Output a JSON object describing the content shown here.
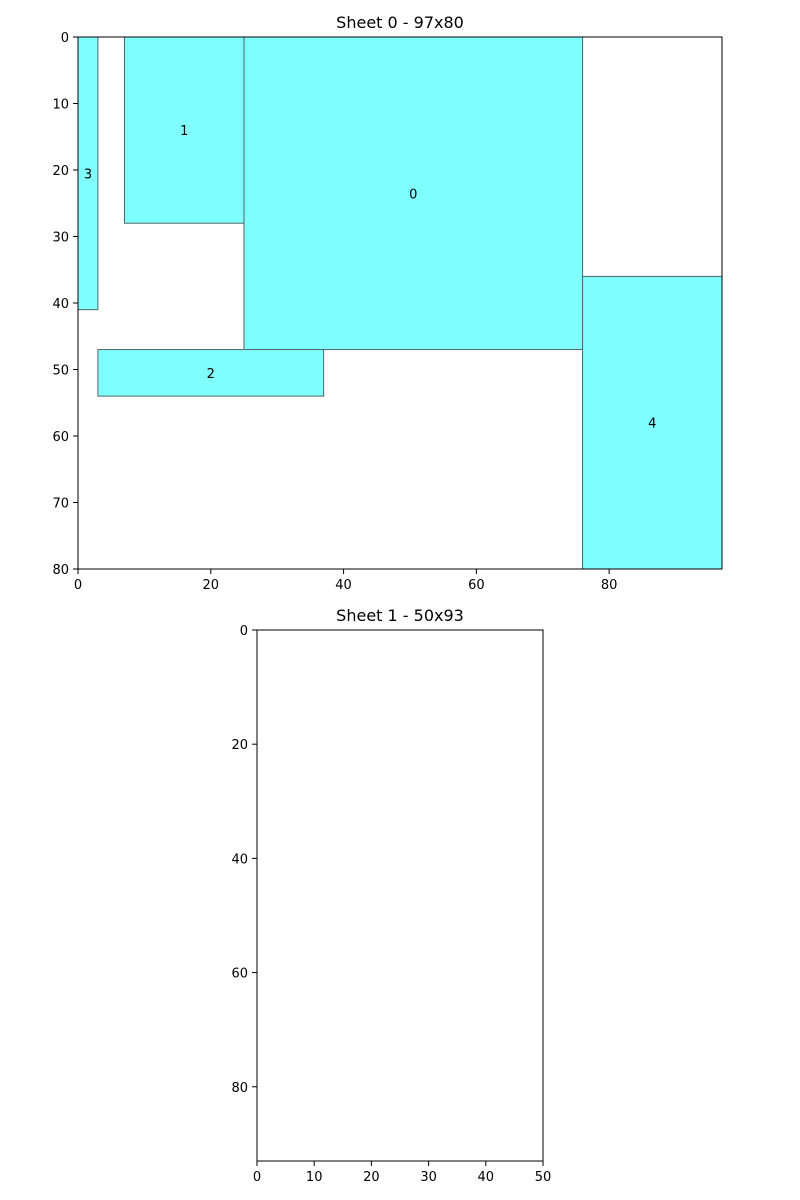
{
  "chart_data": [
    {
      "type": "rectangle-packing",
      "title": "Sheet 0 - 97x80",
      "sheet": {
        "width": 97,
        "height": 80
      },
      "xlim": [
        0,
        97
      ],
      "ylim": [
        0,
        80
      ],
      "y_inverted": true,
      "xticks": [
        0,
        20,
        40,
        60,
        80
      ],
      "yticks": [
        0,
        10,
        20,
        30,
        40,
        50,
        60,
        70,
        80
      ],
      "fill_color": "#80ffff",
      "edge_color": "#4d6666",
      "pieces": [
        {
          "label": "0",
          "x": 25,
          "y": 0,
          "w": 51,
          "h": 47
        },
        {
          "label": "1",
          "x": 7,
          "y": 0,
          "w": 18,
          "h": 28
        },
        {
          "label": "2",
          "x": 3,
          "y": 47,
          "w": 34,
          "h": 7
        },
        {
          "label": "3",
          "x": 0,
          "y": 0,
          "w": 3,
          "h": 41
        },
        {
          "label": "4",
          "x": 76,
          "y": 36,
          "w": 21,
          "h": 44
        }
      ]
    },
    {
      "type": "rectangle-packing",
      "title": "Sheet 1 - 50x93",
      "sheet": {
        "width": 50,
        "height": 93
      },
      "xlim": [
        0,
        50
      ],
      "ylim": [
        0,
        93
      ],
      "y_inverted": true,
      "xticks": [
        0,
        10,
        20,
        30,
        40,
        50
      ],
      "yticks": [
        0,
        20,
        40,
        60,
        80
      ],
      "fill_color": "#80ffff",
      "edge_color": "#4d6666",
      "pieces": []
    }
  ]
}
